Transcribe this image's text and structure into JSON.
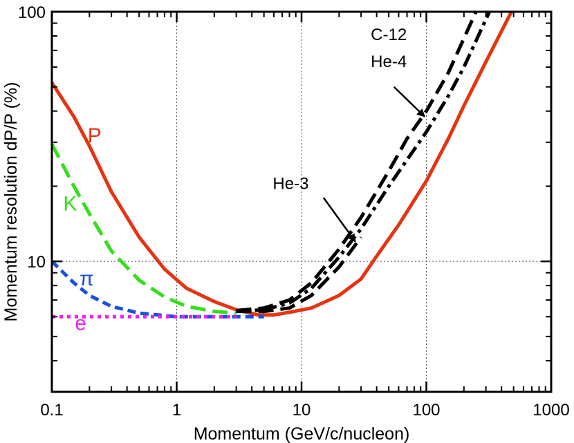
{
  "chart_data": {
    "type": "line",
    "xlabel": "Momentum (GeV/c/nucleon)",
    "ylabel": "Momentum resolution dP/P (%)",
    "x_scale": "log",
    "y_scale": "log",
    "xlim": [
      0.1,
      1000
    ],
    "ylim": [
      3,
      100
    ],
    "x_ticks": [
      {
        "value": 0.1,
        "label": "0.1"
      },
      {
        "value": 1,
        "label": "1"
      },
      {
        "value": 10,
        "label": "10"
      },
      {
        "value": 100,
        "label": "100"
      },
      {
        "value": 1000,
        "label": "1000"
      }
    ],
    "y_ticks": [
      {
        "value": 10,
        "label": "10"
      },
      {
        "value": 100,
        "label": "100"
      }
    ],
    "grid_x": [
      1,
      10,
      100
    ],
    "grid_y": [
      10
    ],
    "series": [
      {
        "name": "P",
        "label": "P",
        "color": "#e63312",
        "style": "solid",
        "points": [
          [
            0.1,
            52
          ],
          [
            0.15,
            38
          ],
          [
            0.2,
            29
          ],
          [
            0.3,
            19
          ],
          [
            0.5,
            12.5
          ],
          [
            0.8,
            9.3
          ],
          [
            1.2,
            7.8
          ],
          [
            2,
            6.9
          ],
          [
            3,
            6.4
          ],
          [
            4.5,
            6.1
          ],
          [
            6,
            6.1
          ],
          [
            8,
            6.25
          ],
          [
            12,
            6.5
          ],
          [
            20,
            7.3
          ],
          [
            30,
            8.5
          ],
          [
            40,
            10.5
          ],
          [
            60,
            14
          ],
          [
            100,
            21
          ],
          [
            150,
            31
          ],
          [
            200,
            42
          ],
          [
            300,
            63
          ],
          [
            480,
            100
          ]
        ]
      },
      {
        "name": "K",
        "label": "K",
        "color": "#33e01a",
        "style": "dash",
        "points": [
          [
            0.1,
            29.5
          ],
          [
            0.15,
            20
          ],
          [
            0.2,
            15.5
          ],
          [
            0.3,
            11
          ],
          [
            0.5,
            8.4
          ],
          [
            0.8,
            7.2
          ],
          [
            1.2,
            6.6
          ],
          [
            2,
            6.3
          ],
          [
            3,
            6.2
          ]
        ]
      },
      {
        "name": "pi",
        "label": "π",
        "color": "#1a4fe0",
        "style": "shortdash",
        "points": [
          [
            0.1,
            10
          ],
          [
            0.15,
            8.2
          ],
          [
            0.2,
            7.3
          ],
          [
            0.3,
            6.6
          ],
          [
            0.5,
            6.2
          ],
          [
            1,
            6
          ],
          [
            2,
            6
          ],
          [
            5,
            6
          ]
        ]
      },
      {
        "name": "e",
        "label": "e",
        "color": "#ee22ee",
        "style": "dot",
        "points": [
          [
            0.1,
            6
          ],
          [
            3,
            6
          ]
        ]
      },
      {
        "name": "C-12",
        "color": "#000000",
        "style": "dash",
        "points": [
          [
            3,
            6.35
          ],
          [
            5,
            6.5
          ],
          [
            8,
            7
          ],
          [
            12,
            8.2
          ],
          [
            20,
            11.2
          ],
          [
            30,
            15
          ],
          [
            50,
            23
          ],
          [
            70,
            31
          ],
          [
            100,
            40
          ],
          [
            150,
            57
          ],
          [
            250,
            100
          ]
        ]
      },
      {
        "name": "He-4",
        "color": "#000000",
        "style": "dashdot",
        "points": [
          [
            3,
            6.3
          ],
          [
            5,
            6.4
          ],
          [
            8,
            6.8
          ],
          [
            12,
            7.8
          ],
          [
            20,
            10.4
          ],
          [
            30,
            13.5
          ],
          [
            50,
            20
          ],
          [
            100,
            33
          ],
          [
            150,
            46
          ],
          [
            200,
            60
          ],
          [
            320,
            100
          ]
        ]
      },
      {
        "name": "He-3",
        "color": "#000000",
        "style": "dash",
        "points": [
          [
            3,
            6.3
          ],
          [
            5,
            6.3
          ],
          [
            8,
            6.5
          ],
          [
            12,
            7.3
          ],
          [
            20,
            9.5
          ],
          [
            30,
            12.5
          ]
        ]
      }
    ],
    "annotations": [
      {
        "name": "annotation-c12",
        "text": "C-12",
        "x": 50,
        "y": 77,
        "color": "#000000"
      },
      {
        "name": "annotation-he4",
        "text": "He-4",
        "x": 50,
        "y": 60,
        "color": "#000000"
      },
      {
        "name": "annotation-he3",
        "text": "He-3",
        "x": 8.2,
        "y": 19.5,
        "color": "#000000"
      },
      {
        "name": "label-p",
        "text": "P",
        "x": 0.22,
        "y": 30,
        "color": "#e63312"
      },
      {
        "name": "label-k",
        "text": "K",
        "x": 0.14,
        "y": 16,
        "color": "#33e01a"
      },
      {
        "name": "label-pi",
        "text": "π",
        "x": 0.19,
        "y": 8,
        "color": "#1a4fe0"
      },
      {
        "name": "label-e",
        "text": "e",
        "x": 0.17,
        "y": 5.3,
        "color": "#ee22ee"
      }
    ],
    "arrows": [
      {
        "name": "arrow-c12-he4",
        "from": [
          55,
          50
        ],
        "to": [
          97,
          38
        ]
      },
      {
        "name": "arrow-he3",
        "from": [
          15,
          18
        ],
        "to": [
          27,
          12
        ]
      }
    ]
  }
}
